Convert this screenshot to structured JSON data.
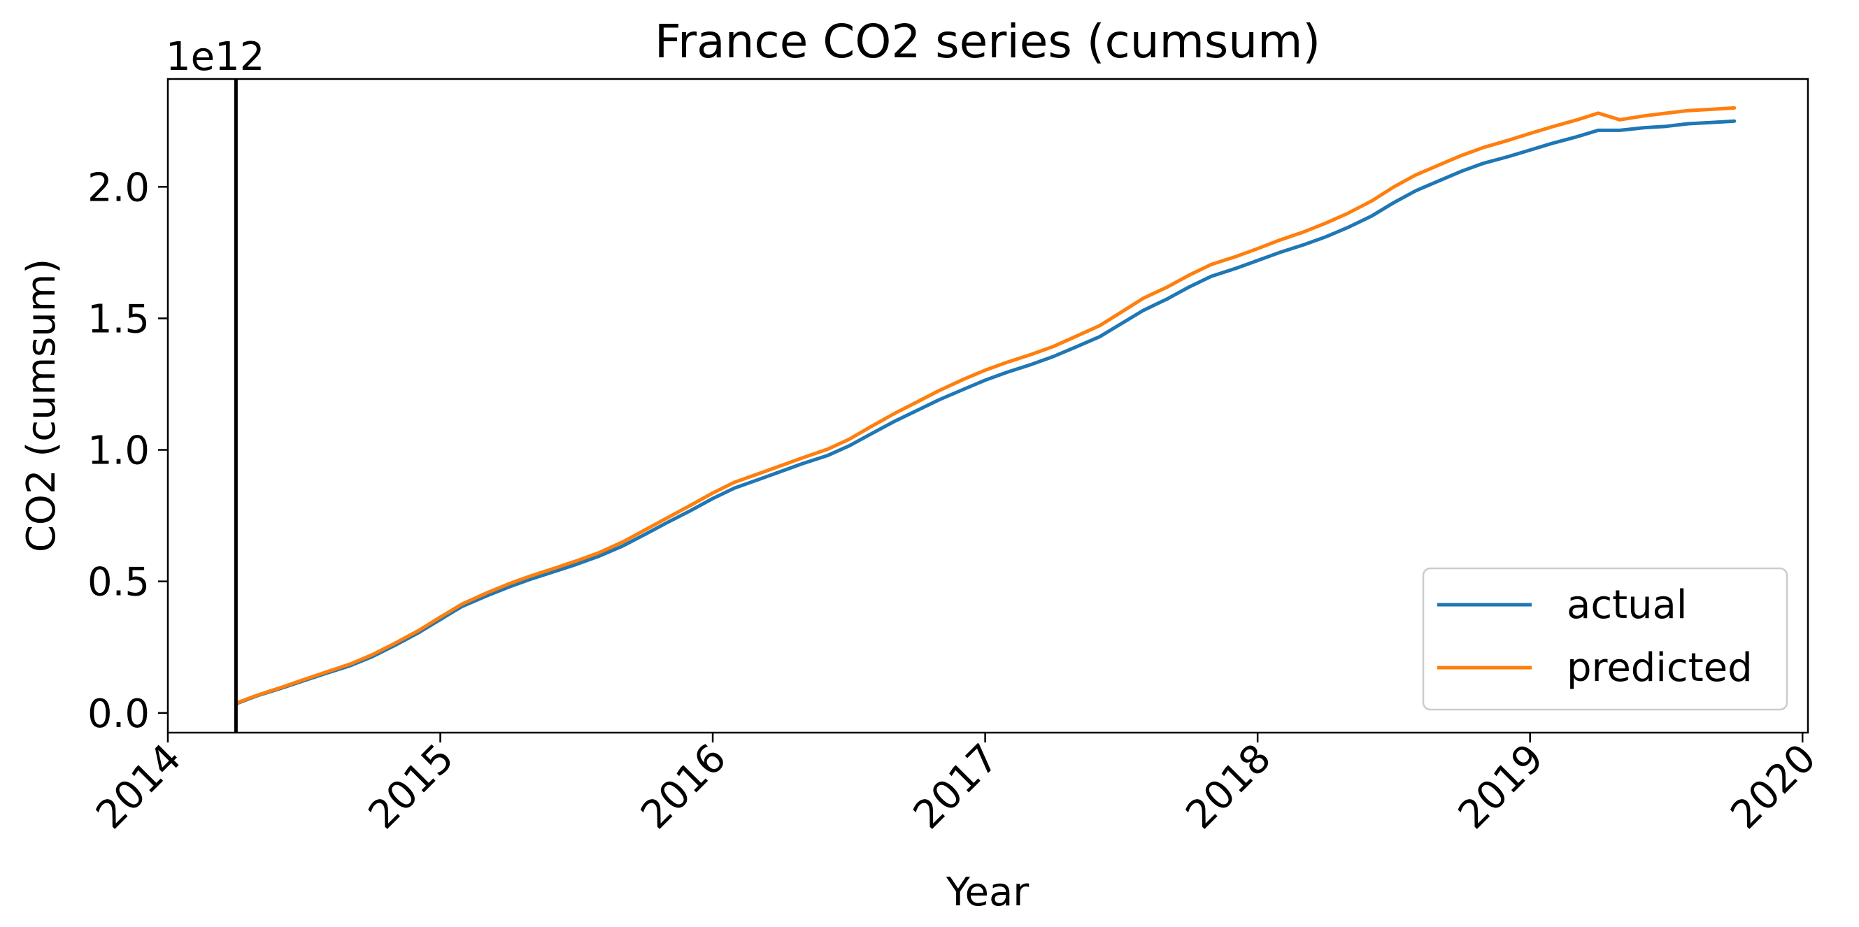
{
  "chart_data": {
    "type": "line",
    "title": "France  CO2 series (cumsum)",
    "xlabel": "Year",
    "ylabel": "CO2 (cumsum)",
    "y_offset_label": "1e12",
    "x_unit": "year",
    "xlim": [
      2014.0,
      2020.02
    ],
    "ylim": [
      -0.075,
      2.41
    ],
    "y_multiplier": 1000000000000.0,
    "x_ticks": [
      2014,
      2015,
      2016,
      2017,
      2018,
      2019,
      2020
    ],
    "x_tick_labels": [
      "2014",
      "2015",
      "2016",
      "2017",
      "2018",
      "2019",
      "2020"
    ],
    "y_ticks": [
      0.0,
      0.5,
      1.0,
      1.5,
      2.0
    ],
    "y_tick_labels": [
      "0.0",
      "0.5",
      "1.0",
      "1.5",
      "2.0"
    ],
    "vertical_line": {
      "x": 2014.25,
      "color": "#000000"
    },
    "grid": false,
    "legend": {
      "position": "lower-right"
    },
    "series": [
      {
        "name": "actual",
        "color": "#1f77b4",
        "x": [
          2014.25,
          2014.33,
          2014.42,
          2014.5,
          2014.58,
          2014.67,
          2014.75,
          2014.83,
          2014.92,
          2015.0,
          2015.08,
          2015.17,
          2015.25,
          2015.33,
          2015.42,
          2015.5,
          2015.58,
          2015.67,
          2015.75,
          2015.83,
          2015.92,
          2016.0,
          2016.08,
          2016.17,
          2016.25,
          2016.33,
          2016.42,
          2016.5,
          2016.58,
          2016.67,
          2016.75,
          2016.83,
          2016.92,
          2017.0,
          2017.08,
          2017.17,
          2017.25,
          2017.33,
          2017.42,
          2017.5,
          2017.58,
          2017.67,
          2017.75,
          2017.83,
          2017.92,
          2018.0,
          2018.08,
          2018.17,
          2018.25,
          2018.33,
          2018.42,
          2018.5,
          2018.58,
          2018.67,
          2018.75,
          2018.83,
          2018.92,
          2019.0,
          2019.08,
          2019.17,
          2019.25,
          2019.33,
          2019.42,
          2019.5,
          2019.58,
          2019.67,
          2019.75
        ],
        "values": [
          0.035,
          0.066,
          0.095,
          0.123,
          0.15,
          0.18,
          0.214,
          0.255,
          0.305,
          0.355,
          0.405,
          0.445,
          0.478,
          0.508,
          0.538,
          0.565,
          0.595,
          0.635,
          0.678,
          0.722,
          0.77,
          0.815,
          0.855,
          0.888,
          0.918,
          0.948,
          0.978,
          1.015,
          1.06,
          1.11,
          1.15,
          1.19,
          1.23,
          1.265,
          1.295,
          1.325,
          1.355,
          1.39,
          1.43,
          1.48,
          1.53,
          1.575,
          1.62,
          1.66,
          1.69,
          1.72,
          1.75,
          1.78,
          1.81,
          1.845,
          1.89,
          1.94,
          1.985,
          2.025,
          2.06,
          2.09,
          2.115,
          2.14,
          2.165,
          2.19,
          2.215,
          2.215,
          2.225,
          2.23,
          2.24,
          2.245,
          2.25
        ]
      },
      {
        "name": "predicted",
        "color": "#ff7f0e",
        "x": [
          2014.25,
          2014.33,
          2014.42,
          2014.5,
          2014.58,
          2014.67,
          2014.75,
          2014.83,
          2014.92,
          2015.0,
          2015.08,
          2015.17,
          2015.25,
          2015.33,
          2015.42,
          2015.5,
          2015.58,
          2015.67,
          2015.75,
          2015.83,
          2015.92,
          2016.0,
          2016.08,
          2016.17,
          2016.25,
          2016.33,
          2016.42,
          2016.5,
          2016.58,
          2016.67,
          2016.75,
          2016.83,
          2016.92,
          2017.0,
          2017.08,
          2017.17,
          2017.25,
          2017.33,
          2017.42,
          2017.5,
          2017.58,
          2017.67,
          2017.75,
          2017.83,
          2017.92,
          2018.0,
          2018.08,
          2018.17,
          2018.25,
          2018.33,
          2018.42,
          2018.5,
          2018.58,
          2018.67,
          2018.75,
          2018.83,
          2018.92,
          2019.0,
          2019.08,
          2019.17,
          2019.25,
          2019.33,
          2019.42,
          2019.5,
          2019.58,
          2019.67,
          2019.75
        ],
        "values": [
          0.037,
          0.068,
          0.098,
          0.127,
          0.155,
          0.186,
          0.221,
          0.263,
          0.313,
          0.364,
          0.414,
          0.456,
          0.49,
          0.52,
          0.55,
          0.578,
          0.608,
          0.65,
          0.695,
          0.74,
          0.79,
          0.836,
          0.877,
          0.91,
          0.94,
          0.97,
          1.002,
          1.04,
          1.088,
          1.14,
          1.182,
          1.225,
          1.268,
          1.303,
          1.333,
          1.363,
          1.393,
          1.43,
          1.472,
          1.524,
          1.576,
          1.62,
          1.665,
          1.705,
          1.735,
          1.765,
          1.797,
          1.829,
          1.862,
          1.899,
          1.947,
          2.0,
          2.045,
          2.085,
          2.12,
          2.15,
          2.177,
          2.203,
          2.228,
          2.254,
          2.28,
          2.255,
          2.27,
          2.28,
          2.29,
          2.295,
          2.3
        ]
      }
    ]
  }
}
